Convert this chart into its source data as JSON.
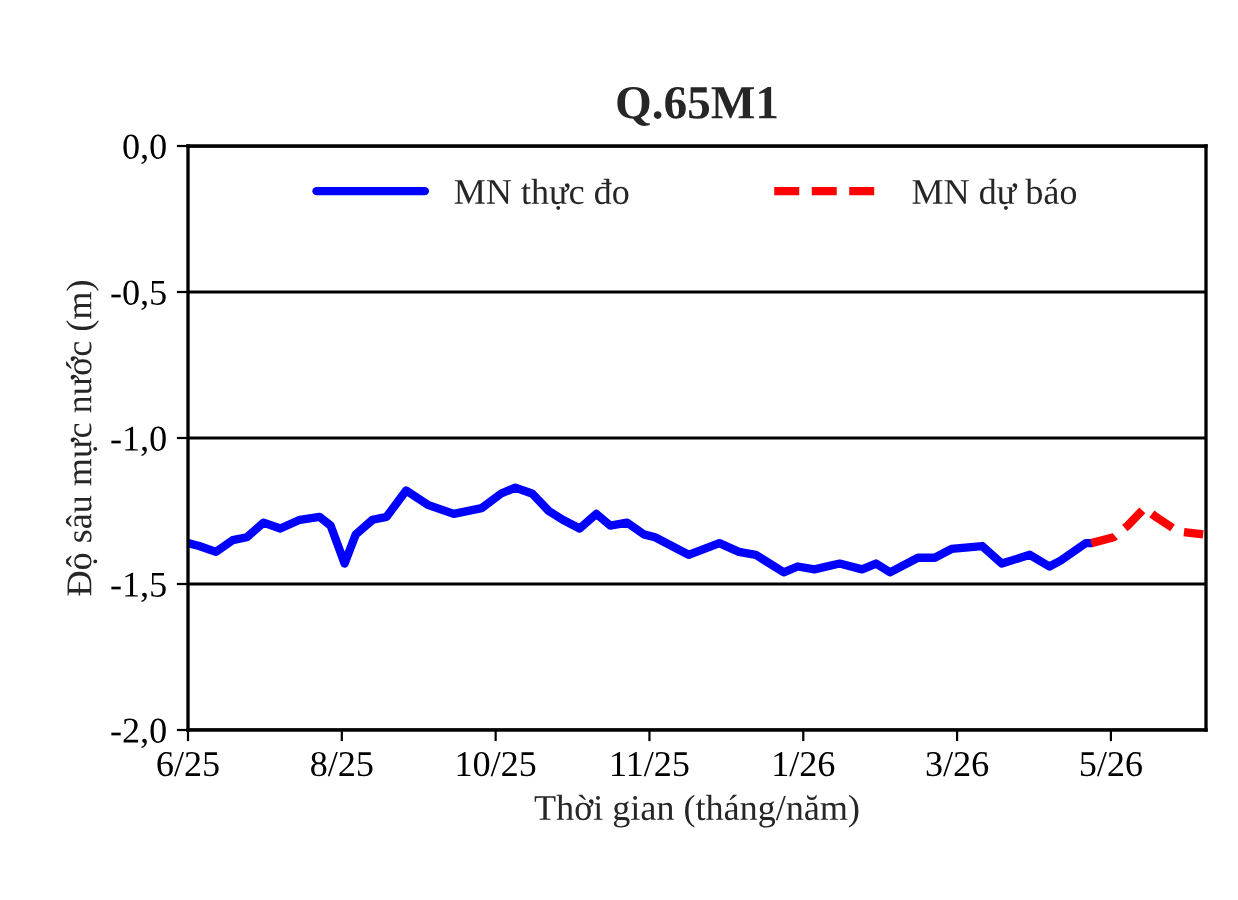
{
  "chart_data": {
    "type": "line",
    "title": "Q.65M1",
    "xlabel": "Thời gian (tháng/năm)",
    "ylabel": "Độ sâu mực nước (m)",
    "xlim": [
      "2025-06-15",
      "2026-06-14"
    ],
    "xticks": [
      {
        "value": "2025-06-15",
        "label": "6/25"
      },
      {
        "value": "2025-08-09",
        "label": "8/25"
      },
      {
        "value": "2025-10-03",
        "label": "10/25"
      },
      {
        "value": "2025-11-27",
        "label": "11/25"
      },
      {
        "value": "2026-01-21",
        "label": "1/26"
      },
      {
        "value": "2026-03-17",
        "label": "3/26"
      },
      {
        "value": "2026-05-11",
        "label": "5/26"
      }
    ],
    "ylim": [
      -2.0,
      0.0
    ],
    "yticks": [
      {
        "value": -2.0,
        "label": "-2,0"
      },
      {
        "value": -1.5,
        "label": "-1,5"
      },
      {
        "value": -1.0,
        "label": "-1,0"
      },
      {
        "value": -0.5,
        "label": "-0,5"
      },
      {
        "value": 0.0,
        "label": "0,0"
      }
    ],
    "grid": "y",
    "legend": "top",
    "marker": "none",
    "series": [
      {
        "name": "MN thực đo",
        "color": "#0000ff",
        "line_style": "solid",
        "x": [
          "2025-06-15",
          "2025-06-19",
          "2025-06-25",
          "2025-07-01",
          "2025-07-06",
          "2025-07-12",
          "2025-07-18",
          "2025-07-25",
          "2025-08-01",
          "2025-08-05",
          "2025-08-10",
          "2025-08-14",
          "2025-08-20",
          "2025-08-25",
          "2025-09-01",
          "2025-09-09",
          "2025-09-18",
          "2025-09-28",
          "2025-10-05",
          "2025-10-10",
          "2025-10-16",
          "2025-10-22",
          "2025-10-27",
          "2025-11-02",
          "2025-11-08",
          "2025-11-13",
          "2025-11-19",
          "2025-11-25",
          "2025-11-29",
          "2025-12-05",
          "2025-12-11",
          "2025-12-22",
          "2025-12-29",
          "2026-01-04",
          "2026-01-14",
          "2026-01-19",
          "2026-01-25",
          "2026-02-03",
          "2026-02-11",
          "2026-02-16",
          "2026-02-21",
          "2026-03-03",
          "2026-03-09",
          "2026-03-15",
          "2026-03-26",
          "2026-04-02",
          "2026-04-12",
          "2026-04-19",
          "2026-04-23",
          "2026-05-02",
          "2026-05-04"
        ],
        "values": [
          -1.36,
          -1.37,
          -1.39,
          -1.35,
          -1.34,
          -1.29,
          -1.31,
          -1.28,
          -1.27,
          -1.3,
          -1.43,
          -1.33,
          -1.28,
          -1.27,
          -1.18,
          -1.23,
          -1.26,
          -1.24,
          -1.19,
          -1.17,
          -1.19,
          -1.25,
          -1.28,
          -1.31,
          -1.26,
          -1.3,
          -1.29,
          -1.33,
          -1.34,
          -1.37,
          -1.4,
          -1.36,
          -1.39,
          -1.4,
          -1.46,
          -1.44,
          -1.45,
          -1.43,
          -1.45,
          -1.43,
          -1.46,
          -1.41,
          -1.41,
          -1.38,
          -1.37,
          -1.43,
          -1.4,
          -1.44,
          -1.42,
          -1.36,
          -1.36
        ]
      },
      {
        "name": "MN dự báo",
        "color": "#ff0000",
        "line_style": "dashed",
        "x": [
          "2026-05-04",
          "2026-05-12",
          "2026-05-17",
          "2026-05-23",
          "2026-05-27",
          "2026-06-04",
          "2026-06-13"
        ],
        "values": [
          -1.36,
          -1.34,
          -1.3,
          -1.24,
          -1.27,
          -1.32,
          -1.33
        ]
      }
    ]
  }
}
